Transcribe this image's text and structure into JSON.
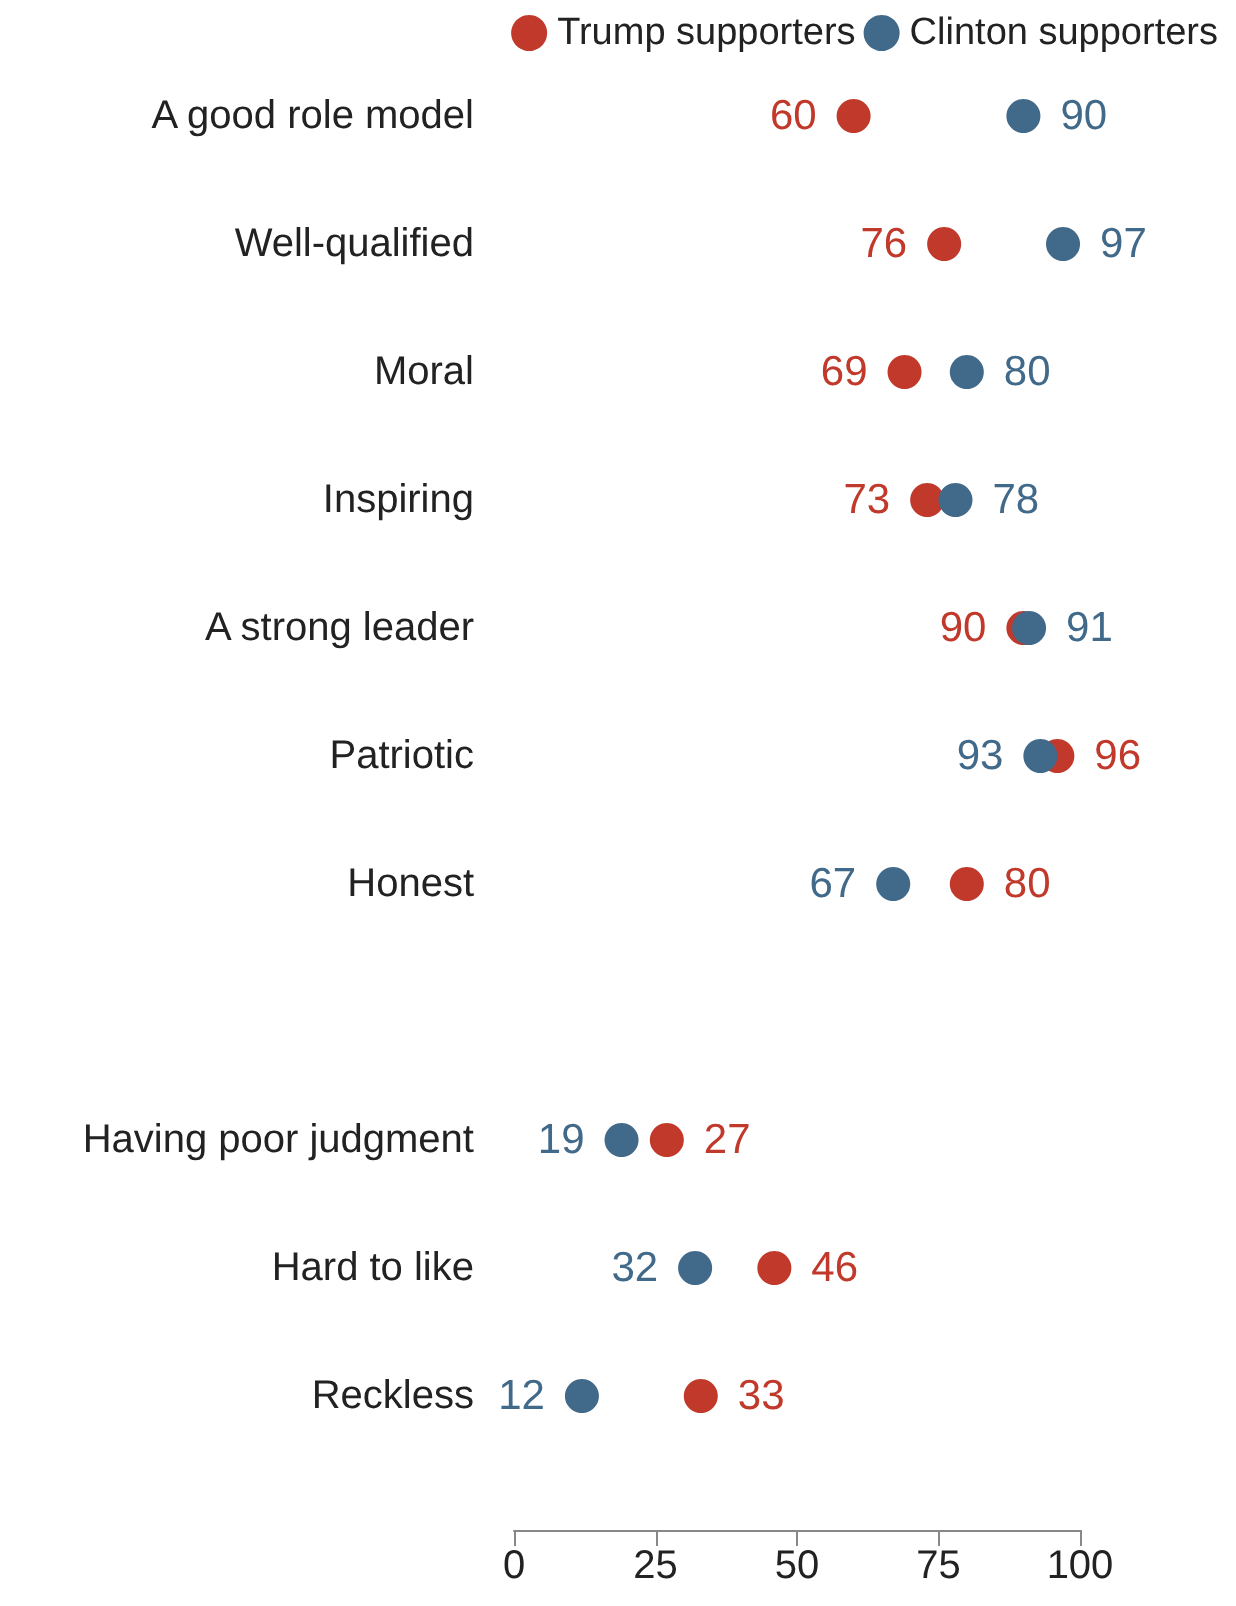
{
  "chart_data": {
    "type": "scatter",
    "orientation": "horizontal",
    "categories": [
      "A good role model",
      "Well-qualified",
      "Moral",
      "Inspiring",
      "A strong leader",
      "Patriotic",
      "Honest",
      null,
      "Having poor judgment",
      "Hard to like",
      "Reckless"
    ],
    "series": [
      {
        "name": "Trump supporters",
        "color": "#c0392b",
        "values": [
          60,
          76,
          69,
          73,
          90,
          96,
          80,
          null,
          27,
          46,
          33
        ]
      },
      {
        "name": "Clinton supporters",
        "color": "#41698a",
        "values": [
          90,
          97,
          80,
          78,
          91,
          93,
          67,
          null,
          19,
          32,
          12
        ]
      }
    ],
    "xlim": [
      0,
      100
    ],
    "xticks": [
      0,
      25,
      50,
      75,
      100
    ],
    "grid": false,
    "legend": "top right",
    "marker": "circle",
    "data_labels": true
  }
}
